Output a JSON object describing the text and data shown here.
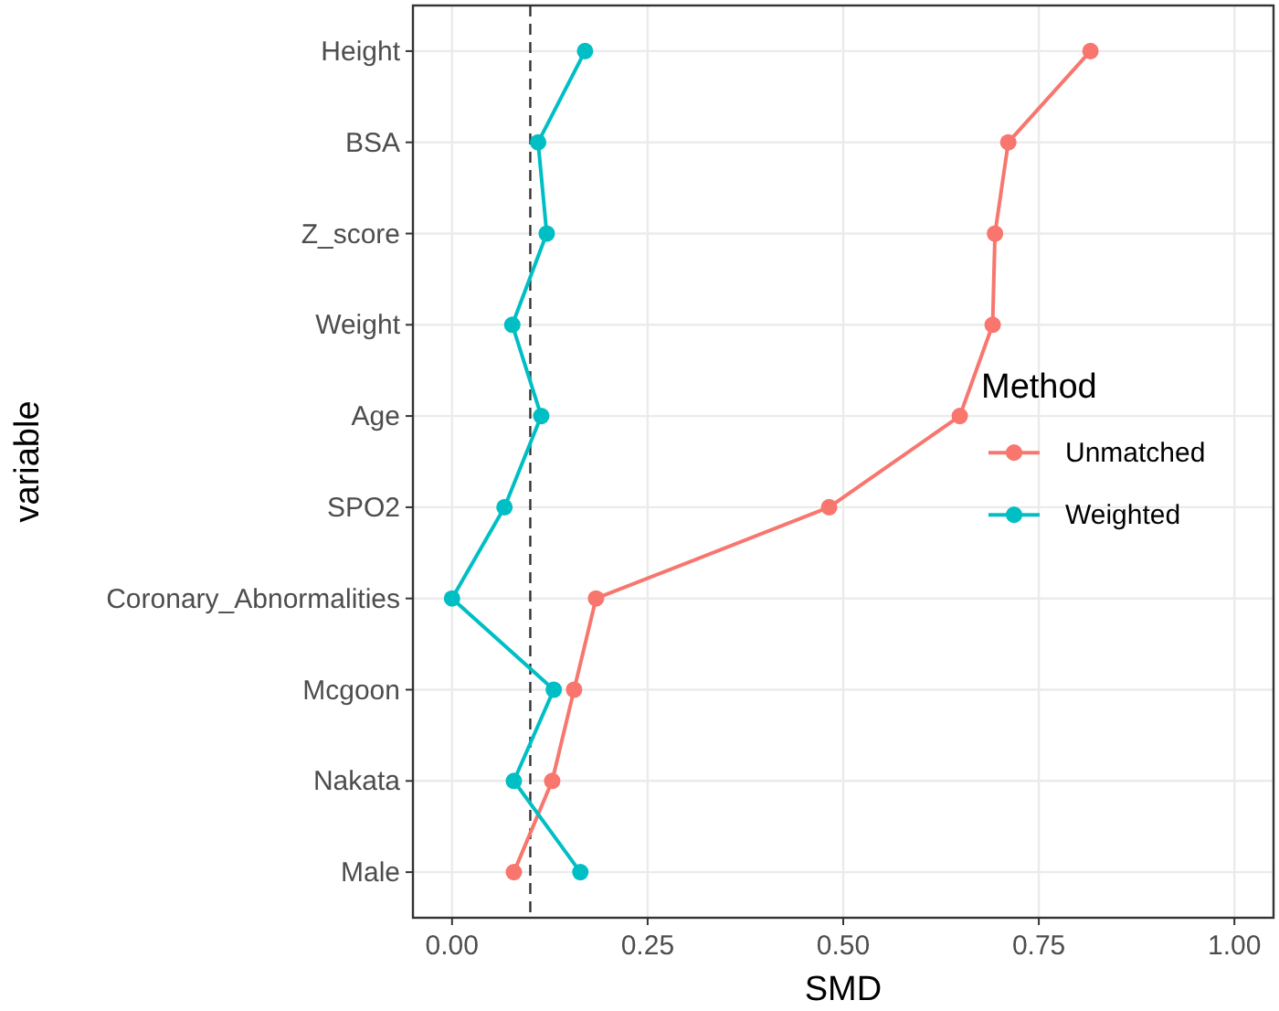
{
  "chart_data": {
    "type": "line",
    "orientation": "horizontal",
    "xlabel": "SMD",
    "ylabel": "variable",
    "legend_title": "Method",
    "legend": "right",
    "grid": true,
    "marker": "circle",
    "line_style": "solid",
    "categories": [
      "Height",
      "BSA",
      "Z_score",
      "Weight",
      "Age",
      "SPO2",
      "Coronary_Abnormalities",
      "Mcgoon",
      "Nakata",
      "Male"
    ],
    "xlim": [
      -0.05,
      1.05
    ],
    "xticks": [
      {
        "value": 0,
        "label": "0.00"
      },
      {
        "value": 0.25,
        "label": "0.25"
      },
      {
        "value": 0.5,
        "label": "0.50"
      },
      {
        "value": 0.75,
        "label": "0.75"
      },
      {
        "value": 1,
        "label": "1.00"
      }
    ],
    "ref_lines": [
      {
        "axis": "x",
        "value": 0.1,
        "line_style": "dashed",
        "color": "#333333"
      }
    ],
    "series": [
      {
        "name": "Unmatched",
        "color": "#f8766d",
        "values": [
          0.816,
          0.711,
          0.694,
          0.691,
          0.649,
          0.482,
          0.184,
          0.156,
          0.128,
          0.079
        ]
      },
      {
        "name": "Weighted",
        "color": "#00bfc4",
        "values": [
          0.17,
          0.11,
          0.121,
          0.077,
          0.114,
          0.067,
          0.0,
          0.13,
          0.079,
          0.164
        ]
      }
    ]
  }
}
